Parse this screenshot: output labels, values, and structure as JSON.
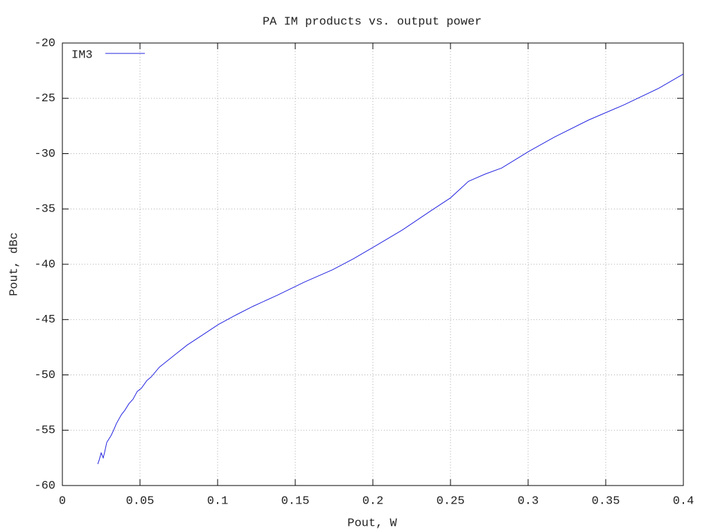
{
  "chart_data": {
    "type": "line",
    "title": "PA IM products vs. output power",
    "xlabel": "Pout, W",
    "ylabel": "Pout, dBc",
    "xlim": [
      0,
      0.4
    ],
    "xticks": [
      0,
      0.05,
      0.1,
      0.15,
      0.2,
      0.25,
      0.3,
      0.35,
      0.4
    ],
    "ylim": [
      -60,
      -20
    ],
    "yticks": [
      -20,
      -25,
      -30,
      -35,
      -40,
      -45,
      -50,
      -55,
      -60
    ],
    "grid": true,
    "legend": "upper left",
    "x": [
      0.0228,
      0.0237,
      0.025,
      0.0263,
      0.0272,
      0.0286,
      0.0313,
      0.033,
      0.0348,
      0.038,
      0.0402,
      0.0429,
      0.0455,
      0.0482,
      0.0509,
      0.0545,
      0.0571,
      0.0625,
      0.0705,
      0.0804,
      0.0902,
      0.1004,
      0.1116,
      0.1228,
      0.1384,
      0.156,
      0.174,
      0.1875,
      0.201,
      0.219,
      0.237,
      0.25,
      0.2616,
      0.2723,
      0.283,
      0.3004,
      0.317,
      0.339,
      0.3616,
      0.384,
      0.4
    ],
    "series": [
      {
        "name": "IM3",
        "color": "#2020e0",
        "values": [
          -58.06,
          -57.7,
          -57.05,
          -57.5,
          -57.0,
          -56.1,
          -55.5,
          -55.0,
          -54.4,
          -53.6,
          -53.2,
          -52.6,
          -52.2,
          -51.5,
          -51.2,
          -50.5,
          -50.2,
          -49.3,
          -48.4,
          -47.3,
          -46.4,
          -45.45,
          -44.6,
          -43.8,
          -42.8,
          -41.6,
          -40.5,
          -39.5,
          -38.4,
          -36.9,
          -35.2,
          -34.0,
          -32.5,
          -31.85,
          -31.3,
          -29.8,
          -28.5,
          -26.96,
          -25.6,
          -24.1,
          -22.8
        ]
      }
    ]
  }
}
